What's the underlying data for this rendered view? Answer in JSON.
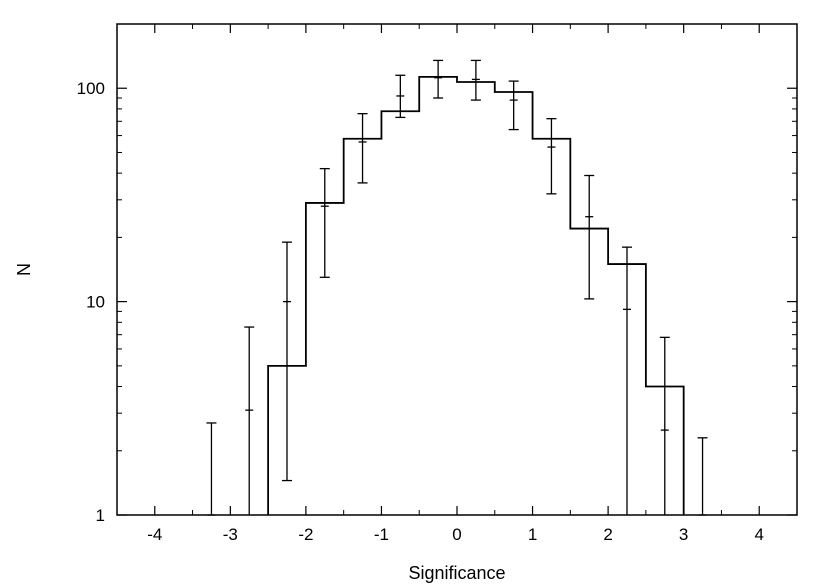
{
  "chart_data": {
    "type": "histogram",
    "title": "",
    "xlabel": "Significance",
    "ylabel": "N",
    "xlim": [
      -4.5,
      4.5
    ],
    "ylim": [
      1,
      200
    ],
    "yscale": "log",
    "grid": false,
    "x_ticks": [
      -4,
      -3,
      -2,
      -1,
      0,
      1,
      2,
      3,
      4
    ],
    "x_tick_labels": [
      "-4",
      "-3",
      "-2",
      "-1",
      "0",
      "1",
      "2",
      "3",
      "4"
    ],
    "y_ticks": [
      1,
      10,
      100
    ],
    "y_tick_labels": [
      "1",
      "10",
      "100"
    ],
    "histogram": {
      "bin_edges": [
        -2.5,
        -2.0,
        -1.5,
        -1.0,
        -0.5,
        0.0,
        0.5,
        1.0,
        1.5,
        2.0,
        2.5,
        3.0
      ],
      "counts": [
        5,
        29,
        58,
        78,
        113,
        107,
        96,
        58,
        22,
        15,
        4
      ]
    },
    "points": {
      "x": [
        -3.25,
        -2.75,
        -2.25,
        -1.75,
        -1.25,
        -0.75,
        -0.25,
        0.25,
        0.75,
        1.25,
        1.75,
        2.25,
        2.75,
        3.25
      ],
      "y": [
        1.0,
        3.1,
        10,
        28,
        56,
        92,
        112,
        110,
        88,
        53,
        25,
        9.2,
        2.5,
        1.0
      ],
      "err_low": [
        0.7,
        0.8,
        1.45,
        13,
        36,
        73,
        90,
        88,
        64,
        32,
        10.3,
        0.8,
        0.8,
        0.8
      ],
      "err_high": [
        2.7,
        7.6,
        19,
        42,
        76,
        115,
        135,
        135,
        108,
        72,
        39,
        18,
        6.8,
        2.3
      ]
    }
  }
}
